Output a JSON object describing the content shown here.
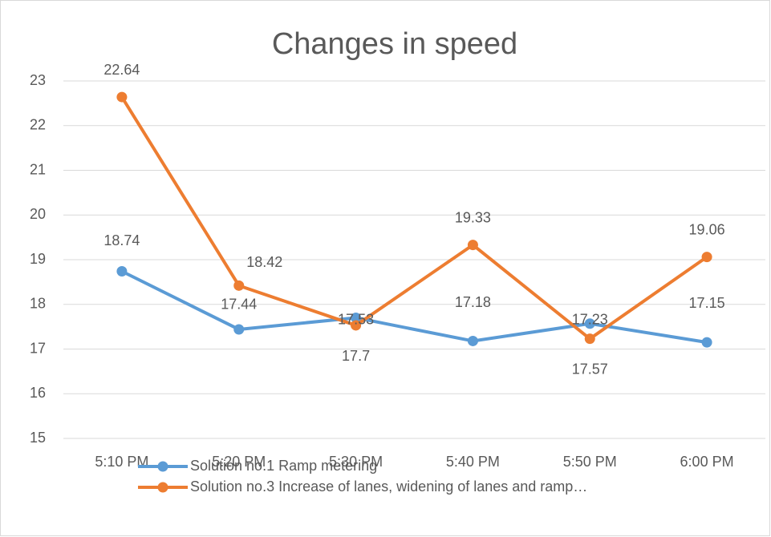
{
  "chart_data": {
    "type": "line",
    "title": "Changes in speed",
    "categories": [
      "5:10 PM",
      "5:20 PM",
      "5:30 PM",
      "5:40 PM",
      "5:50 PM",
      "6:00 PM"
    ],
    "series": [
      {
        "name": "Solution no.1 Ramp metering",
        "color": "#5b9bd5",
        "values": [
          18.74,
          17.44,
          17.7,
          17.18,
          17.57,
          17.15
        ]
      },
      {
        "name": "Solution no.3 Increase of lanes, widening of lanes and ramp…",
        "color": "#ed7d31",
        "values": [
          22.64,
          18.42,
          17.53,
          19.33,
          17.23,
          19.06
        ]
      }
    ],
    "ylim": [
      15,
      23
    ],
    "yticks": [
      15,
      16,
      17,
      18,
      19,
      20,
      21,
      22,
      23
    ],
    "grid": true
  }
}
